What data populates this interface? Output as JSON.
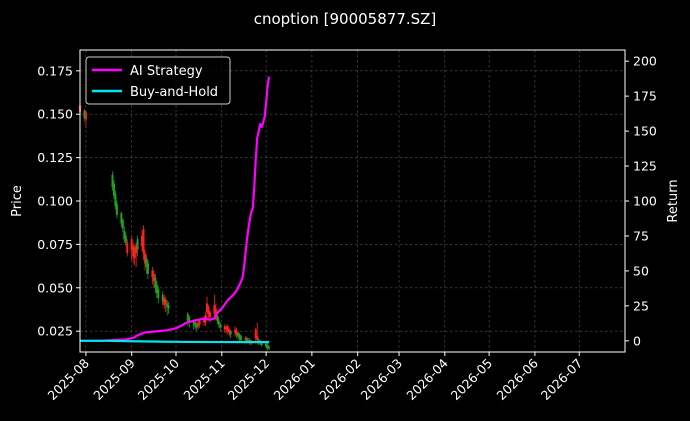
{
  "chart_data": {
    "type": "line",
    "title": "cnoption [90005877.SZ]",
    "ylabel_left": "Price",
    "ylabel_right": "Return",
    "ylim_left": [
      0.013,
      0.187
    ],
    "ylim_right": [
      -8,
      208
    ],
    "xlim": [
      "2025-07-28",
      "2026-08-01"
    ],
    "yticks_left": [
      0.025,
      0.05,
      0.075,
      0.1,
      0.125,
      0.15,
      0.175
    ],
    "yticks_left_labels": [
      "0.025",
      "0.050",
      "0.075",
      "0.100",
      "0.125",
      "0.150",
      "0.175"
    ],
    "yticks_right": [
      0,
      25,
      50,
      75,
      100,
      125,
      150,
      175,
      200
    ],
    "yticks_right_labels": [
      "0",
      "25",
      "50",
      "75",
      "100",
      "125",
      "150",
      "175",
      "200"
    ],
    "xticks": [
      "2025-08-01",
      "2025-09-01",
      "2025-10-01",
      "2025-11-01",
      "2025-12-01",
      "2026-01-01",
      "2026-02-01",
      "2026-03-01",
      "2026-04-01",
      "2026-05-01",
      "2026-06-01",
      "2026-07-01"
    ],
    "xtick_labels": [
      "2025-08",
      "2025-09",
      "2025-10",
      "2025-11",
      "2025-12",
      "2026-01",
      "2026-02",
      "2026-03",
      "2026-04",
      "2026-05",
      "2026-06",
      "2026-07"
    ],
    "grid": true,
    "legend_position": "top-left",
    "colors": {
      "background": "#000000",
      "strategy": "#ff00ff",
      "buyhold": "#00e5ee",
      "up": "#ff2020",
      "down": "#1fa01f",
      "grid": "#555555",
      "axis": "#ffffff"
    },
    "series": [
      {
        "name": "AI Strategy",
        "axis": "right",
        "points": [
          [
            "2025-07-28",
            0
          ],
          [
            "2025-08-10",
            0
          ],
          [
            "2025-08-20",
            0.5
          ],
          [
            "2025-08-28",
            1
          ],
          [
            "2025-09-02",
            2
          ],
          [
            "2025-09-05",
            4
          ],
          [
            "2025-09-10",
            6
          ],
          [
            "2025-09-15",
            6.5
          ],
          [
            "2025-09-20",
            7
          ],
          [
            "2025-09-25",
            7.5
          ],
          [
            "2025-10-01",
            9
          ],
          [
            "2025-10-05",
            11
          ],
          [
            "2025-10-08",
            13
          ],
          [
            "2025-10-12",
            14
          ],
          [
            "2025-10-16",
            15
          ],
          [
            "2025-10-20",
            16
          ],
          [
            "2025-10-24",
            15
          ],
          [
            "2025-10-27",
            16
          ],
          [
            "2025-10-29",
            20
          ],
          [
            "2025-11-01",
            23
          ],
          [
            "2025-11-03",
            26
          ],
          [
            "2025-11-05",
            29
          ],
          [
            "2025-11-07",
            31
          ],
          [
            "2025-11-09",
            33
          ],
          [
            "2025-11-11",
            36
          ],
          [
            "2025-11-13",
            40
          ],
          [
            "2025-11-15",
            45
          ],
          [
            "2025-11-16",
            52
          ],
          [
            "2025-11-17",
            62
          ],
          [
            "2025-11-18",
            72
          ],
          [
            "2025-11-19",
            80
          ],
          [
            "2025-11-20",
            87
          ],
          [
            "2025-11-21",
            92
          ],
          [
            "2025-11-22",
            95
          ],
          [
            "2025-11-23",
            110
          ],
          [
            "2025-11-24",
            130
          ],
          [
            "2025-11-25",
            145
          ],
          [
            "2025-11-26",
            150
          ],
          [
            "2025-11-27",
            155
          ],
          [
            "2025-11-28",
            153
          ],
          [
            "2025-11-29",
            156
          ],
          [
            "2025-11-30",
            160
          ],
          [
            "2025-12-01",
            170
          ],
          [
            "2025-12-02",
            182
          ],
          [
            "2025-12-03",
            189
          ]
        ]
      },
      {
        "name": "Buy-and-Hold",
        "axis": "right",
        "points": [
          [
            "2025-07-28",
            0
          ],
          [
            "2025-08-15",
            0
          ],
          [
            "2025-09-01",
            -0.3
          ],
          [
            "2025-09-20",
            -0.6
          ],
          [
            "2025-10-10",
            -0.8
          ],
          [
            "2025-10-30",
            -0.9
          ],
          [
            "2025-11-20",
            -0.95
          ],
          [
            "2025-12-03",
            -0.95
          ]
        ]
      }
    ],
    "candles": [
      [
        "2025-07-28",
        0.151,
        0.155,
        0.145,
        0.156,
        "up"
      ],
      [
        "2025-07-31",
        0.148,
        0.152,
        0.146,
        0.153,
        "down"
      ],
      [
        "2025-08-01",
        0.147,
        0.151,
        0.142,
        0.152,
        "up"
      ],
      [
        "2025-08-19",
        0.115,
        0.108,
        0.106,
        0.117,
        "down"
      ],
      [
        "2025-08-20",
        0.11,
        0.103,
        0.101,
        0.112,
        "down"
      ],
      [
        "2025-08-21",
        0.104,
        0.097,
        0.095,
        0.106,
        "down"
      ],
      [
        "2025-08-22",
        0.098,
        0.092,
        0.09,
        0.1,
        "down"
      ],
      [
        "2025-08-25",
        0.093,
        0.087,
        0.085,
        0.094,
        "down"
      ],
      [
        "2025-08-26",
        0.089,
        0.084,
        0.082,
        0.09,
        "down"
      ],
      [
        "2025-08-27",
        0.083,
        0.078,
        0.076,
        0.085,
        "down"
      ],
      [
        "2025-08-28",
        0.08,
        0.076,
        0.074,
        0.082,
        "down"
      ],
      [
        "2025-08-29",
        0.076,
        0.07,
        0.068,
        0.078,
        "up"
      ],
      [
        "2025-09-01",
        0.078,
        0.072,
        0.066,
        0.08,
        "up"
      ],
      [
        "2025-09-02",
        0.074,
        0.068,
        0.064,
        0.076,
        "up"
      ],
      [
        "2025-09-03",
        0.073,
        0.067,
        0.063,
        0.075,
        "up"
      ],
      [
        "2025-09-04",
        0.074,
        0.07,
        0.062,
        0.076,
        "up"
      ],
      [
        "2025-09-05",
        0.078,
        0.072,
        0.068,
        0.08,
        "down"
      ],
      [
        "2025-09-08",
        0.08,
        0.074,
        0.071,
        0.083,
        "up"
      ],
      [
        "2025-09-09",
        0.084,
        0.07,
        0.066,
        0.086,
        "up"
      ],
      [
        "2025-09-10",
        0.07,
        0.064,
        0.06,
        0.072,
        "up"
      ],
      [
        "2025-09-11",
        0.067,
        0.062,
        0.058,
        0.069,
        "down"
      ],
      [
        "2025-09-12",
        0.064,
        0.058,
        0.055,
        0.066,
        "down"
      ],
      [
        "2025-09-15",
        0.06,
        0.056,
        0.052,
        0.062,
        "up"
      ],
      [
        "2025-09-16",
        0.058,
        0.054,
        0.05,
        0.06,
        "up"
      ],
      [
        "2025-09-17",
        0.056,
        0.05,
        0.047,
        0.058,
        "down"
      ],
      [
        "2025-09-18",
        0.052,
        0.047,
        0.044,
        0.054,
        "down"
      ],
      [
        "2025-09-19",
        0.049,
        0.044,
        0.041,
        0.051,
        "down"
      ],
      [
        "2025-09-22",
        0.046,
        0.042,
        0.04,
        0.048,
        "down"
      ],
      [
        "2025-09-23",
        0.044,
        0.04,
        0.038,
        0.046,
        "up"
      ],
      [
        "2025-09-24",
        0.043,
        0.041,
        0.036,
        0.045,
        "up"
      ],
      [
        "2025-09-25",
        0.041,
        0.039,
        0.034,
        0.043,
        "down"
      ],
      [
        "2025-09-26",
        0.04,
        0.038,
        0.035,
        0.042,
        "down"
      ],
      [
        "2025-10-09",
        0.035,
        0.031,
        0.028,
        0.036,
        "down"
      ],
      [
        "2025-10-10",
        0.033,
        0.03,
        0.027,
        0.034,
        "down"
      ],
      [
        "2025-10-13",
        0.031,
        0.029,
        0.026,
        0.032,
        "down"
      ],
      [
        "2025-10-14",
        0.03,
        0.028,
        0.026,
        0.031,
        "down"
      ],
      [
        "2025-10-15",
        0.029,
        0.027,
        0.025,
        0.03,
        "down"
      ],
      [
        "2025-10-16",
        0.03,
        0.028,
        0.026,
        0.031,
        "up"
      ],
      [
        "2025-10-17",
        0.031,
        0.029,
        0.027,
        0.032,
        "up"
      ],
      [
        "2025-10-20",
        0.032,
        0.03,
        0.028,
        0.034,
        "up"
      ],
      [
        "2025-10-21",
        0.034,
        0.03,
        0.028,
        0.036,
        "up"
      ],
      [
        "2025-10-22",
        0.041,
        0.036,
        0.032,
        0.045,
        "up"
      ],
      [
        "2025-10-23",
        0.039,
        0.035,
        0.032,
        0.04,
        "up"
      ],
      [
        "2025-10-24",
        0.036,
        0.033,
        0.03,
        0.037,
        "up"
      ],
      [
        "2025-10-27",
        0.04,
        0.035,
        0.032,
        0.046,
        "up"
      ],
      [
        "2025-10-28",
        0.038,
        0.034,
        0.031,
        0.041,
        "up"
      ],
      [
        "2025-10-29",
        0.034,
        0.031,
        0.029,
        0.036,
        "down"
      ],
      [
        "2025-10-30",
        0.031,
        0.029,
        0.027,
        0.033,
        "down"
      ],
      [
        "2025-10-31",
        0.029,
        0.027,
        0.025,
        0.03,
        "down"
      ],
      [
        "2025-11-03",
        0.028,
        0.026,
        0.024,
        0.029,
        "up"
      ],
      [
        "2025-11-04",
        0.027,
        0.026,
        0.024,
        0.028,
        "up"
      ],
      [
        "2025-11-05",
        0.028,
        0.025,
        0.023,
        0.029,
        "up"
      ],
      [
        "2025-11-06",
        0.026,
        0.024,
        0.022,
        0.027,
        "up"
      ],
      [
        "2025-11-07",
        0.025,
        0.023,
        0.021,
        0.026,
        "down"
      ],
      [
        "2025-11-10",
        0.026,
        0.024,
        0.022,
        0.028,
        "up"
      ],
      [
        "2025-11-11",
        0.025,
        0.023,
        0.021,
        0.027,
        "up"
      ],
      [
        "2025-11-12",
        0.024,
        0.022,
        0.02,
        0.025,
        "down"
      ],
      [
        "2025-11-13",
        0.023,
        0.021,
        0.019,
        0.024,
        "down"
      ],
      [
        "2025-11-14",
        0.022,
        0.02,
        0.019,
        0.023,
        "down"
      ],
      [
        "2025-11-17",
        0.021,
        0.02,
        0.018,
        0.022,
        "up"
      ],
      [
        "2025-11-18",
        0.021,
        0.019,
        0.018,
        0.022,
        "down"
      ],
      [
        "2025-11-19",
        0.02,
        0.019,
        0.018,
        0.021,
        "up"
      ],
      [
        "2025-11-20",
        0.02,
        0.018,
        0.017,
        0.021,
        "down"
      ],
      [
        "2025-11-21",
        0.019,
        0.018,
        0.017,
        0.02,
        "up"
      ],
      [
        "2025-11-24",
        0.026,
        0.021,
        0.019,
        0.027,
        "up"
      ],
      [
        "2025-11-25",
        0.022,
        0.02,
        0.018,
        0.03,
        "up"
      ],
      [
        "2025-11-26",
        0.02,
        0.018,
        0.017,
        0.021,
        "down"
      ],
      [
        "2025-11-27",
        0.019,
        0.018,
        0.017,
        0.02,
        "up"
      ],
      [
        "2025-11-28",
        0.018,
        0.017,
        0.016,
        0.019,
        "down"
      ],
      [
        "2025-12-01",
        0.018,
        0.016,
        0.015,
        0.019,
        "down"
      ],
      [
        "2025-12-02",
        0.017,
        0.015,
        0.014,
        0.018,
        "down"
      ],
      [
        "2025-12-03",
        0.016,
        0.015,
        0.014,
        0.017,
        "down"
      ]
    ]
  }
}
